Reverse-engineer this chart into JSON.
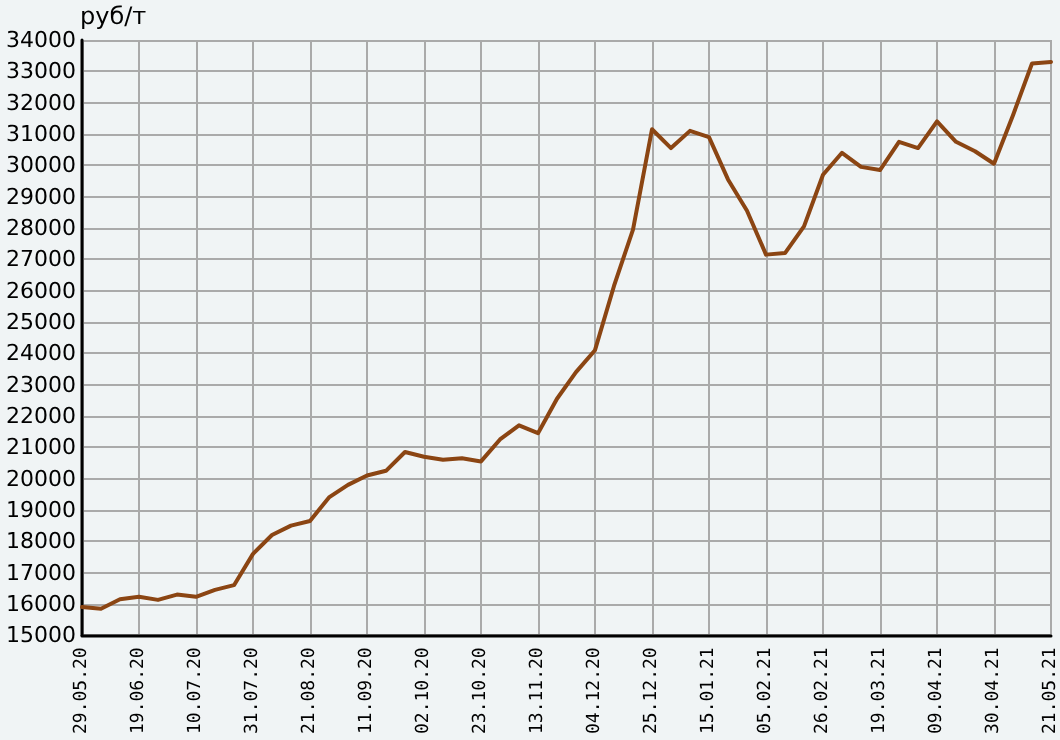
{
  "chart_data": {
    "type": "line",
    "ylabel": "руб/т",
    "categories": [
      "29.05.20",
      null,
      null,
      "19.06.20",
      null,
      null,
      "10.07.20",
      null,
      null,
      "31.07.20",
      null,
      null,
      "21.08.20",
      null,
      null,
      "11.09.20",
      null,
      null,
      "02.10.20",
      null,
      null,
      "23.10.20",
      null,
      null,
      "13.11.20",
      null,
      null,
      "04.12.20",
      null,
      null,
      "25.12.20",
      null,
      null,
      "15.01.21",
      null,
      null,
      "05.02.21",
      null,
      null,
      "26.02.21",
      null,
      null,
      "19.03.21",
      null,
      null,
      "09.04.21",
      null,
      null,
      "30.04.21",
      null,
      null,
      "21.05.21"
    ],
    "series": [
      {
        "color": "#8b4513",
        "values": [
          15900,
          15850,
          16150,
          16230,
          16130,
          16300,
          16230,
          16450,
          16600,
          17600,
          18200,
          18500,
          18650,
          19400,
          19800,
          20100,
          20250,
          20850,
          20700,
          20600,
          20650,
          20550,
          21250,
          21700,
          21450,
          22550,
          23400,
          24100,
          26150,
          27950,
          31150,
          30550,
          31100,
          30900,
          29550,
          28550,
          27150,
          27200,
          28050,
          29700,
          30400,
          29950,
          29850,
          30750,
          30550,
          31400,
          30750,
          30450,
          30050,
          31600,
          33250,
          33300
        ]
      }
    ],
    "ylim": [
      15000,
      34000
    ],
    "yticks": [
      15000,
      16000,
      17000,
      18000,
      19000,
      20000,
      21000,
      22000,
      23000,
      24000,
      25000,
      26000,
      27000,
      28000,
      29000,
      30000,
      31000,
      32000,
      33000,
      34000
    ],
    "grid": true,
    "marker": "none",
    "line_style": "solid"
  }
}
